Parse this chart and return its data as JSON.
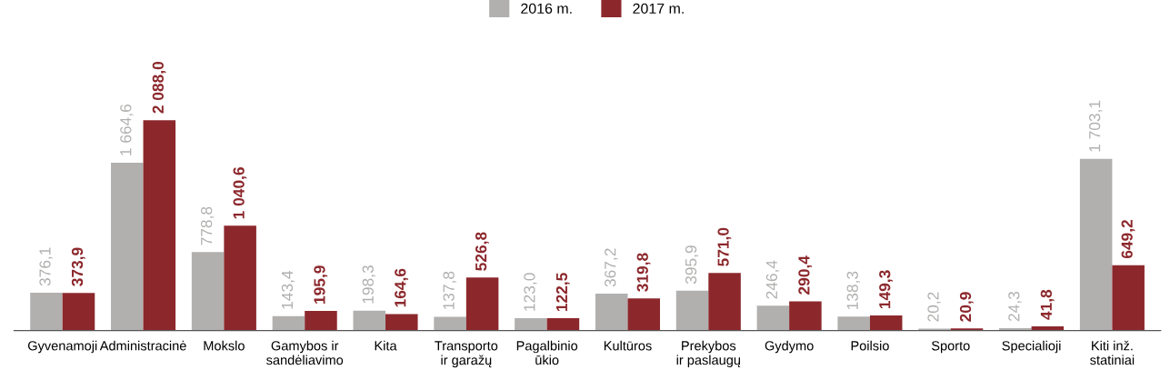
{
  "chart_data": {
    "type": "bar",
    "categories": [
      "Gyvenamoji",
      "Administracinė",
      "Mokslo",
      "Gamybos ir\nsandėliavimo",
      "Kita",
      "Transporto\nir garažų",
      "Pagalbinio\nūkio",
      "Kultūros",
      "Prekybos\nir paslaugų",
      "Gydymo",
      "Poilsio",
      "Sporto",
      "Specialioji",
      "Kiti inž.\nstatiniai"
    ],
    "series": [
      {
        "name": "2016 m.",
        "color": "#b1b0af",
        "values": [
          376.1,
          1664.6,
          778.8,
          143.4,
          198.3,
          137.8,
          123.0,
          367.2,
          395.9,
          246.4,
          138.3,
          20.2,
          24.3,
          1703.1
        ],
        "value_labels": [
          "376,1",
          "1 664,6",
          "778,8",
          "143,4",
          "198,3",
          "137,8",
          "123,0",
          "367,2",
          "395,9",
          "246,4",
          "138,3",
          "20,2",
          "24,3",
          "1 703,1"
        ]
      },
      {
        "name": "2017 m.",
        "color": "#8c282c",
        "values": [
          373.9,
          2088.0,
          1040.6,
          195.9,
          164.6,
          526.8,
          122.5,
          319.8,
          571.0,
          290.4,
          149.3,
          20.9,
          41.8,
          649.2
        ],
        "value_labels": [
          "373,9",
          "2 088,0",
          "1 040,6",
          "195,9",
          "164,6",
          "526,8",
          "122,5",
          "319,8",
          "571,0",
          "290,4",
          "149,3",
          "20,9",
          "41,8",
          "649,2"
        ]
      }
    ],
    "legend": "top",
    "grid": false
  }
}
